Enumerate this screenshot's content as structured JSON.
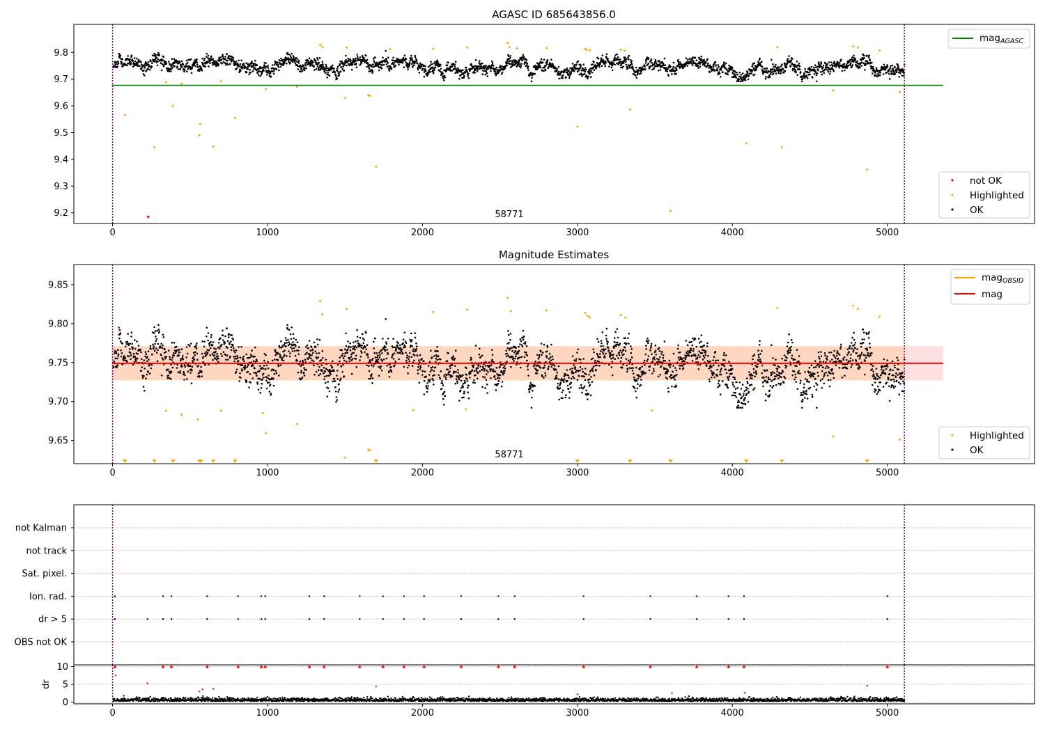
{
  "chart_data": [
    {
      "type": "scatter",
      "title": "AGASC ID 685643856.0",
      "annotation": "58771",
      "xlim": [
        -250,
        5950
      ],
      "ylim": [
        9.16,
        9.905
      ],
      "xticks": [
        0,
        1000,
        2000,
        3000,
        4000,
        5000
      ],
      "xtick_labels": [
        "0",
        "1000",
        "2000",
        "3000",
        "4000",
        "5000"
      ],
      "yticks": [
        9.2,
        9.3,
        9.4,
        9.5,
        9.6,
        9.7,
        9.8
      ],
      "ytick_labels": [
        "9.2",
        "9.3",
        "9.4",
        "9.5",
        "9.6",
        "9.7",
        "9.8"
      ],
      "vlines": [
        0,
        5110
      ],
      "mag_agasc": 9.677,
      "legend_lines": [
        {
          "label": "mag",
          "sub": "AGASC",
          "color": "#008000"
        }
      ],
      "legend_points": [
        {
          "label": "not OK",
          "color": "#ff0000"
        },
        {
          "label": "Highlighted",
          "color": "#ffa500"
        },
        {
          "label": "OK",
          "color": "#000000"
        }
      ],
      "series": [
        {
          "name": "OK",
          "color": "#000000",
          "description": "~5100 samples, time 0-5110, mag ~9.68-9.81 around 9.75"
        },
        {
          "name": "not OK",
          "color": "#ff0000",
          "points": [
            [
              230,
              9.185
            ]
          ]
        },
        {
          "name": "Highlighted",
          "color": "#ffa500",
          "points": [
            [
              80,
              9.565
            ],
            [
              270,
              9.445
            ],
            [
              345,
              9.688
            ],
            [
              390,
              9.6
            ],
            [
              445,
              9.683
            ],
            [
              560,
              9.49
            ],
            [
              565,
              9.533
            ],
            [
              650,
              9.448
            ],
            [
              700,
              9.692
            ],
            [
              790,
              9.555
            ],
            [
              990,
              9.663
            ],
            [
              1190,
              9.672
            ],
            [
              1340,
              9.828
            ],
            [
              1355,
              9.82
            ],
            [
              1500,
              9.63
            ],
            [
              1510,
              9.818
            ],
            [
              1650,
              9.64
            ],
            [
              1660,
              9.638
            ],
            [
              1700,
              9.373
            ],
            [
              1790,
              9.812
            ],
            [
              2070,
              9.813
            ],
            [
              2290,
              9.818
            ],
            [
              2550,
              9.835
            ],
            [
              2560,
              9.82
            ],
            [
              2610,
              9.815
            ],
            [
              2800,
              9.816
            ],
            [
              3000,
              9.522
            ],
            [
              3050,
              9.813
            ],
            [
              3060,
              9.81
            ],
            [
              3080,
              9.808
            ],
            [
              3280,
              9.81
            ],
            [
              3305,
              9.807
            ],
            [
              3340,
              9.587
            ],
            [
              3600,
              9.207
            ],
            [
              4090,
              9.46
            ],
            [
              4290,
              9.82
            ],
            [
              4320,
              9.445
            ],
            [
              4650,
              9.658
            ],
            [
              4780,
              9.823
            ],
            [
              4810,
              9.818
            ],
            [
              4870,
              9.362
            ],
            [
              5080,
              9.652
            ],
            [
              4950,
              9.807
            ]
          ]
        }
      ]
    },
    {
      "type": "scatter",
      "title": "Magnitude Estimates",
      "annotation": "58771",
      "xlim": [
        -250,
        5950
      ],
      "ylim": [
        9.62,
        9.876
      ],
      "xticks": [
        0,
        1000,
        2000,
        3000,
        4000,
        5000
      ],
      "xtick_labels": [
        "0",
        "1000",
        "2000",
        "3000",
        "4000",
        "5000"
      ],
      "yticks": [
        9.65,
        9.7,
        9.75,
        9.8,
        9.85
      ],
      "ytick_labels": [
        "9.65",
        "9.70",
        "9.75",
        "9.80",
        "9.85"
      ],
      "vlines": [
        0,
        5110
      ],
      "mag": 9.749,
      "mag_band": [
        9.727,
        9.771
      ],
      "mag_obsid_band": [
        9.727,
        9.771
      ],
      "legend_lines": [
        {
          "label": "mag",
          "sub": "OBSID",
          "color": "#ffa500"
        },
        {
          "label": "mag",
          "sub": "",
          "color": "#ff0000"
        }
      ],
      "legend_points": [
        {
          "label": "Highlighted",
          "color": "#ffa500"
        },
        {
          "label": "OK",
          "color": "#000000"
        }
      ],
      "offscale_markers_x": [
        80,
        270,
        390,
        560,
        570,
        650,
        790,
        1700,
        3000,
        3340,
        3600,
        4090,
        4320,
        4870
      ],
      "series": [
        {
          "name": "OK",
          "color": "#000000",
          "description": "~5100 samples, mag ~9.69-9.81 around 9.749"
        },
        {
          "name": "Highlighted",
          "color": "#ffa500",
          "points": [
            [
              345,
              9.688
            ],
            [
              445,
              9.683
            ],
            [
              550,
              9.677
            ],
            [
              700,
              9.688
            ],
            [
              970,
              9.685
            ],
            [
              990,
              9.659
            ],
            [
              1190,
              9.671
            ],
            [
              1340,
              9.829
            ],
            [
              1355,
              9.812
            ],
            [
              1500,
              9.628
            ],
            [
              1510,
              9.819
            ],
            [
              1650,
              9.638
            ],
            [
              1660,
              9.637
            ],
            [
              1940,
              9.689
            ],
            [
              2070,
              9.815
            ],
            [
              2280,
              9.69
            ],
            [
              2290,
              9.818
            ],
            [
              2550,
              9.833
            ],
            [
              2570,
              9.816
            ],
            [
              2800,
              9.817
            ],
            [
              3050,
              9.814
            ],
            [
              3065,
              9.81
            ],
            [
              3080,
              9.808
            ],
            [
              3280,
              9.811
            ],
            [
              3310,
              9.808
            ],
            [
              3480,
              9.688
            ],
            [
              4290,
              9.82
            ],
            [
              4650,
              9.655
            ],
            [
              4780,
              9.823
            ],
            [
              4810,
              9.819
            ],
            [
              4950,
              9.809
            ],
            [
              5080,
              9.651
            ]
          ]
        }
      ]
    },
    {
      "type": "scatter",
      "title": "",
      "xlim": [
        -250,
        5950
      ],
      "vlines": [
        0,
        5110
      ],
      "flag_rows": [
        "not Kalman",
        "not track",
        "Sat. pixel.",
        "Ion. rad.",
        "dr > 5",
        "OBS not OK"
      ],
      "flag_x": [
        15,
        325,
        380,
        610,
        810,
        960,
        985,
        1270,
        1365,
        1595,
        1745,
        1880,
        2010,
        2250,
        2490,
        2595,
        3040,
        3470,
        3770,
        3975,
        4075,
        5000
      ],
      "dr_extra_x": [
        225
      ],
      "kalman_x": [
        5110
      ],
      "dr_panel": {
        "ylabel": "dr",
        "ylim": [
          -0.5,
          10.5
        ],
        "yticks": [
          0,
          5,
          10
        ],
        "ytick_labels": [
          "0",
          "5",
          "10"
        ],
        "xticks": [
          0,
          1000,
          2000,
          3000,
          4000,
          5000
        ],
        "xtick_labels": [
          "0",
          "1000",
          "2000",
          "3000",
          "4000",
          "5000"
        ],
        "clip_value": 10,
        "outliers": [
          [
            20,
            7.5
          ],
          [
            225,
            5.3
          ],
          [
            560,
            3.0
          ],
          [
            580,
            3.6
          ],
          [
            650,
            3.7
          ],
          [
            1700,
            4.4
          ],
          [
            3000,
            2.2
          ],
          [
            3610,
            2.5
          ],
          [
            4080,
            2.6
          ],
          [
            4870,
            4.6
          ]
        ]
      }
    }
  ]
}
